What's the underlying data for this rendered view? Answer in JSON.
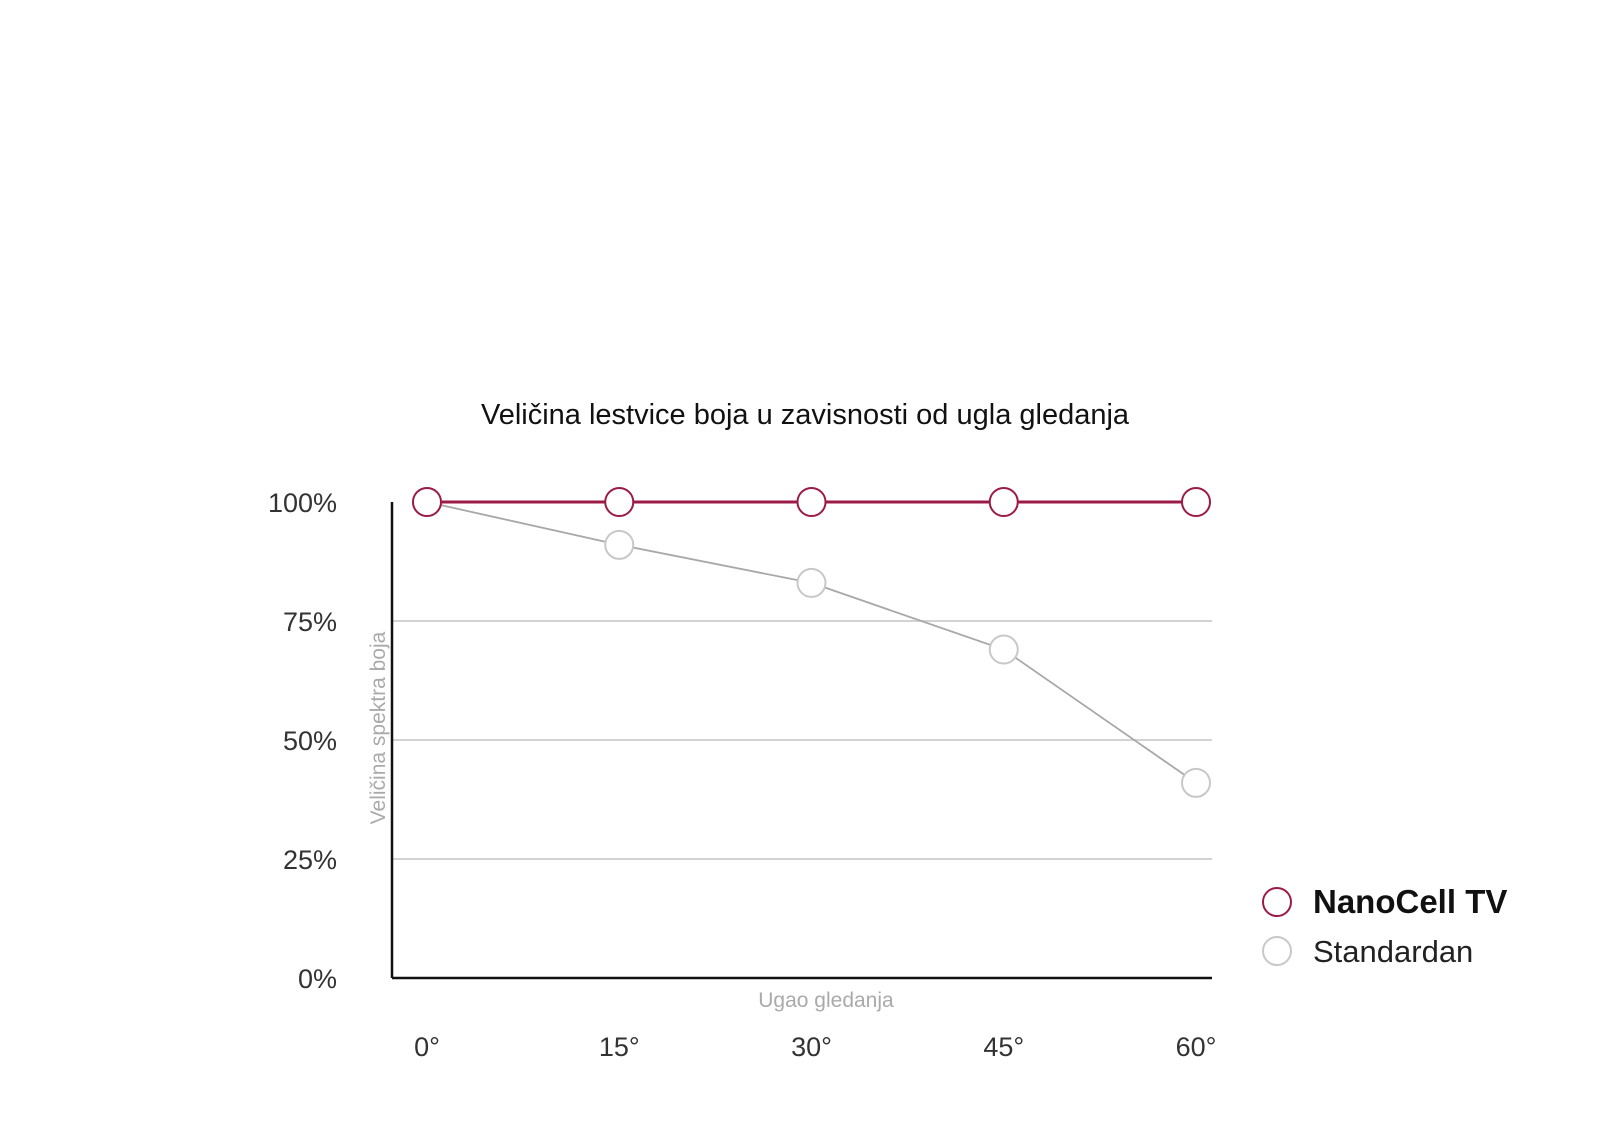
{
  "colors": {
    "nanocell": "#9c1b45",
    "standard": "#a8a8a8",
    "standard_marker": "#c8c8c8",
    "grid": "#d3d3d3",
    "axis": "#111111"
  },
  "chart_data": {
    "type": "line",
    "title": "Veličina lestvice boja u zavisnosti od ugla gledanja",
    "xlabel": "Ugao gledanja",
    "ylabel": "Veličina spektra boja",
    "x": [
      0,
      15,
      30,
      45,
      60
    ],
    "categories": [
      "0°",
      "15°",
      "30°",
      "45°",
      "60°"
    ],
    "y_ticks": [
      "0%",
      "25%",
      "50%",
      "75%",
      "100%"
    ],
    "ylim": [
      0,
      100
    ],
    "grid": true,
    "legend_position": "right",
    "series": [
      {
        "name": "NanoCell TV",
        "x": [
          0,
          15,
          30,
          45,
          60
        ],
        "values": [
          100,
          100,
          100,
          100,
          100
        ]
      },
      {
        "name": "Standardan",
        "x": [
          0,
          15,
          30,
          45,
          60
        ],
        "values": [
          100,
          91,
          83,
          69,
          41
        ]
      }
    ]
  }
}
